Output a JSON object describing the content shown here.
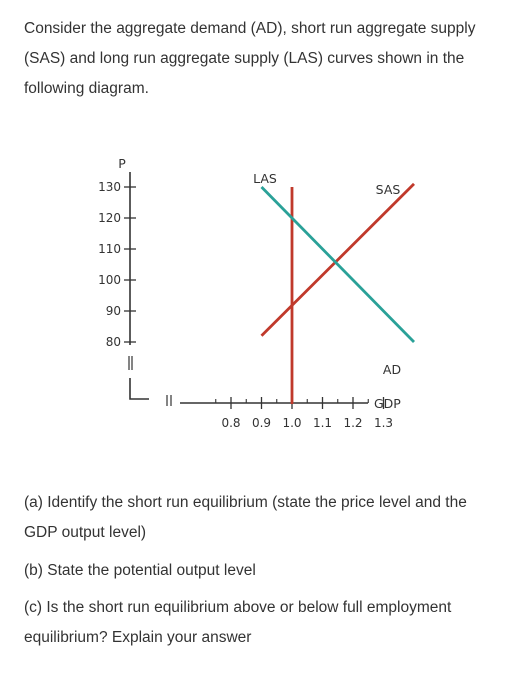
{
  "text": {
    "intro": "Consider the aggregate demand (AD), short run aggregate supply (SAS) and long run aggregate supply (LAS) curves shown in the following diagram.",
    "question_a": "(a) Identify the short run equilibrium (state the price level and the GDP output level)",
    "question_b": "(b) State the potential output level",
    "question_c": "(c) Is the short run equilibrium above or below full employment equilibrium? Explain your answer"
  },
  "chart_data": {
    "type": "line",
    "title": "",
    "xlabel": "GDP",
    "ylabel": "P",
    "x_ticks": [
      "0.8",
      "0.9",
      "1.0",
      "1.1",
      "1.2",
      "1.3"
    ],
    "y_ticks": [
      "130",
      "120",
      "110",
      "100",
      "90",
      "80"
    ],
    "x_range": [
      0.8,
      1.3
    ],
    "y_range": [
      80,
      130
    ],
    "axis_breaks": true,
    "series": [
      {
        "name": "LAS",
        "color": "#c0392b",
        "points": [
          [
            1.0,
            130
          ],
          [
            1.0,
            60
          ]
        ]
      },
      {
        "name": "SAS",
        "color": "#c0392b",
        "points": [
          [
            0.9,
            82
          ],
          [
            1.4,
            131
          ]
        ]
      },
      {
        "name": "AD",
        "color": "#2aa198",
        "points": [
          [
            0.9,
            130
          ],
          [
            1.4,
            80
          ]
        ]
      }
    ]
  }
}
